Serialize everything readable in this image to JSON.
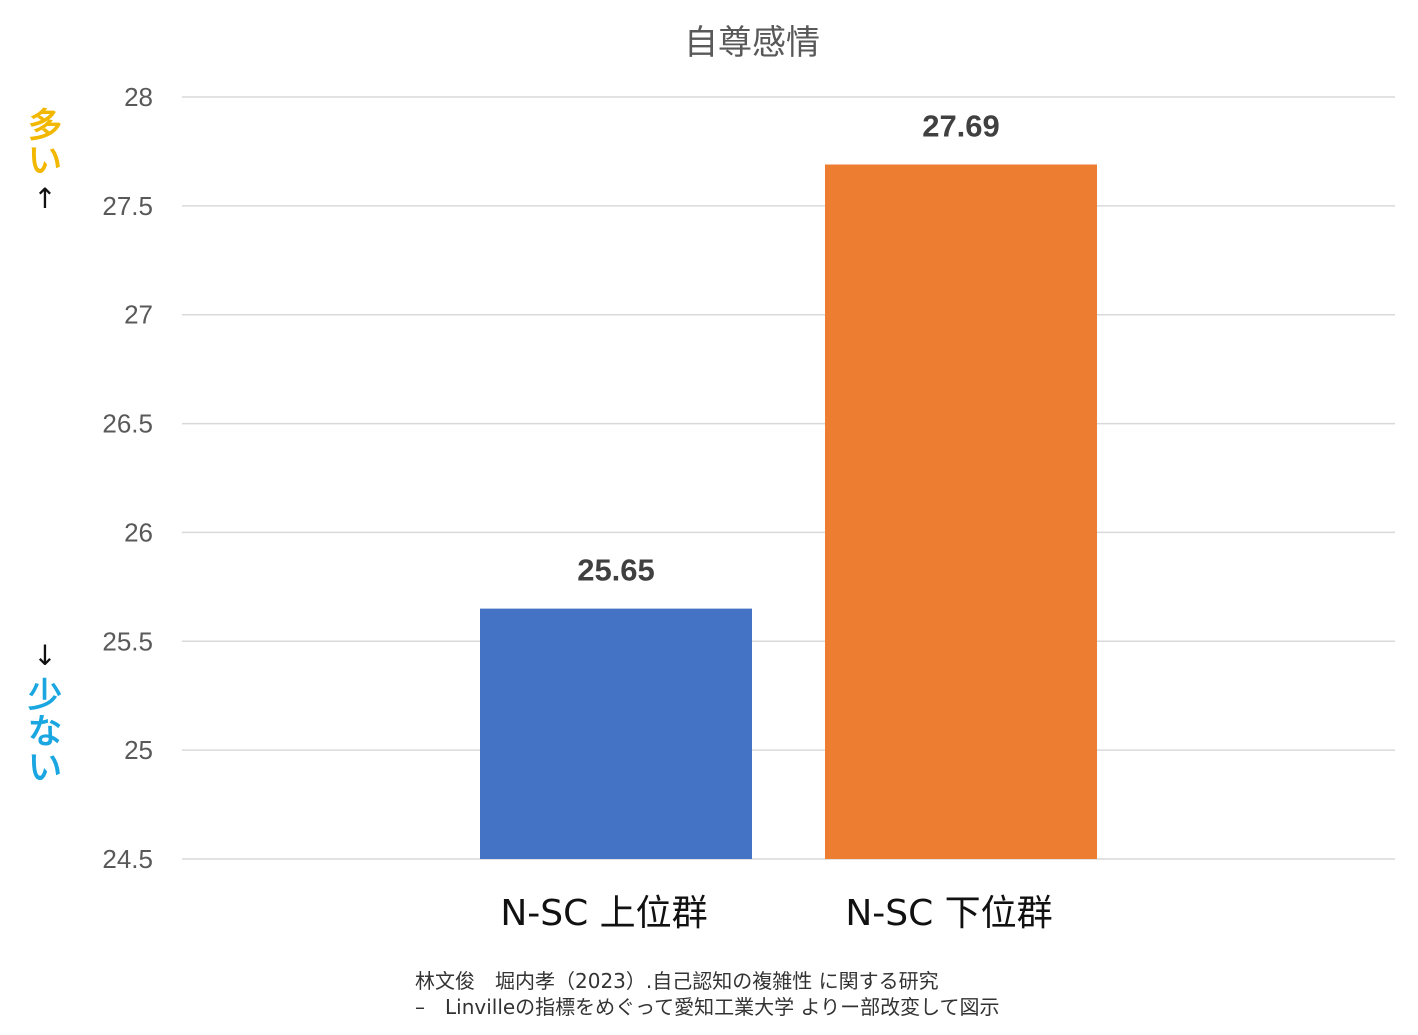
{
  "chart_data": {
    "type": "bar",
    "title": "自尊感情",
    "categories": [
      "N-SC 上位群",
      "N-SC 下位群"
    ],
    "values": [
      25.65,
      27.69
    ],
    "data_labels": [
      "25.65",
      "27.69"
    ],
    "bar_colors": [
      "#4472c4",
      "#ed7d31"
    ],
    "ylim": [
      24.5,
      28
    ],
    "yticks": [
      24.5,
      25,
      25.5,
      26,
      26.5,
      27,
      27.5,
      28
    ],
    "ytick_labels": [
      "24.5",
      "25",
      "25.5",
      "26",
      "26.5",
      "27",
      "27.5",
      "28"
    ],
    "grid": true,
    "legend": "none",
    "xlabel": "",
    "ylabel": ""
  },
  "side_labels": {
    "high_chars": [
      "多",
      "い"
    ],
    "high_arrow": "↑",
    "low_arrow": "↓",
    "low_chars": [
      "少",
      "な",
      "い"
    ],
    "high_color": "#f2b800",
    "low_color": "#1aa6e0"
  },
  "source": {
    "line1": "林文俊　堀内孝（2023）.自己認知の複雑性 に関する研究",
    "line2": "–　Linvilleの指標をめぐって愛知工業大学 よりー部改変して図示"
  }
}
